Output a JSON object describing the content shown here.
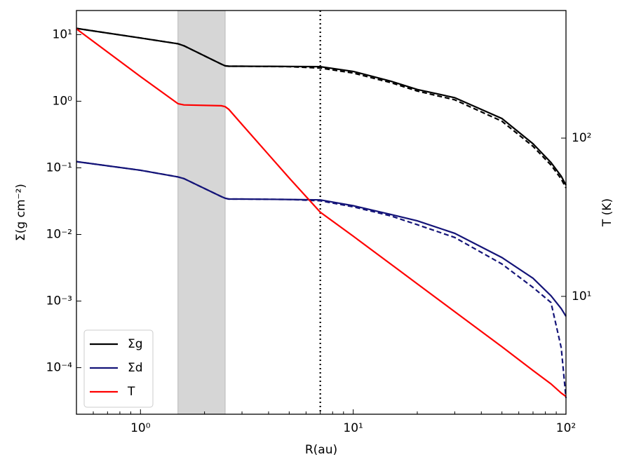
{
  "chart_data": {
    "type": "line",
    "xlabel": "R(au)",
    "ylabel": "Σ(g cm⁻²)",
    "y2label": "T (K)",
    "xscale": "log",
    "yscale": "log",
    "y2scale": "log",
    "xlim": [
      0.5,
      100
    ],
    "ylim": [
      2e-05,
      23
    ],
    "y2lim": [
      1.8,
      640
    ],
    "xticks": [
      {
        "value": 1,
        "label": "10⁰"
      },
      {
        "value": 10,
        "label": "10¹"
      },
      {
        "value": 100,
        "label": "10²"
      }
    ],
    "xminorticks": [
      0.6,
      0.7,
      0.8,
      0.9,
      2,
      3,
      4,
      5,
      6,
      7,
      8,
      9,
      20,
      30,
      40,
      50,
      60,
      70,
      80,
      90
    ],
    "yticks": [
      {
        "value": 0.0001,
        "label": "10⁻⁴"
      },
      {
        "value": 0.001,
        "label": "10⁻³"
      },
      {
        "value": 0.01,
        "label": "10⁻²"
      },
      {
        "value": 0.1,
        "label": "10⁻¹"
      },
      {
        "value": 1,
        "label": "10⁰"
      },
      {
        "value": 10,
        "label": "10¹"
      }
    ],
    "y2ticks": [
      {
        "value": 10,
        "label": "10¹"
      },
      {
        "value": 100,
        "label": "10²"
      }
    ],
    "shade": [
      1.5,
      2.5
    ],
    "shade_color": "#d6d6d6",
    "vline": 7,
    "legend": "lower left",
    "x": [
      0.5,
      1,
      1.5,
      1.6,
      2.4,
      2.5,
      2.6,
      3,
      5,
      7,
      10,
      15,
      20,
      30,
      50,
      70,
      85,
      95,
      100
    ],
    "series": [
      {
        "name": "Σg",
        "color": "#000000",
        "values": [
          12.4,
          8.9,
          7.3,
          6.8,
          3.6,
          3.4,
          3.35,
          3.35,
          3.33,
          3.3,
          2.8,
          2.0,
          1.5,
          1.13,
          0.55,
          0.23,
          0.12,
          0.075,
          0.055
        ]
      },
      {
        "color": "#000000",
        "dash": true,
        "values": [
          12.4,
          8.9,
          7.3,
          6.8,
          3.6,
          3.4,
          3.35,
          3.35,
          3.3,
          3.15,
          2.65,
          1.9,
          1.42,
          1.05,
          0.5,
          0.21,
          0.11,
          0.068,
          0.05
        ]
      },
      {
        "name": "Σd",
        "color": "#141478",
        "values": [
          0.124,
          0.092,
          0.073,
          0.069,
          0.037,
          0.035,
          0.034,
          0.034,
          0.0335,
          0.033,
          0.027,
          0.02,
          0.016,
          0.0104,
          0.0045,
          0.0022,
          0.0012,
          0.00077,
          0.00059
        ]
      },
      {
        "color": "#141478",
        "dash": true,
        "values": [
          0.124,
          0.092,
          0.073,
          0.069,
          0.037,
          0.035,
          0.034,
          0.034,
          0.0335,
          0.032,
          0.026,
          0.019,
          0.014,
          0.009,
          0.0036,
          0.0016,
          0.00095,
          0.0002,
          3.5e-05
        ]
      },
      {
        "name": "T",
        "color": "#ff0000",
        "axis": "y2",
        "values": [
          490,
          245,
          165,
          162,
          160,
          158,
          152,
          122,
          56,
          34,
          24,
          16,
          12,
          8,
          4.8,
          3.4,
          2.8,
          2.45,
          2.33
        ]
      }
    ]
  }
}
